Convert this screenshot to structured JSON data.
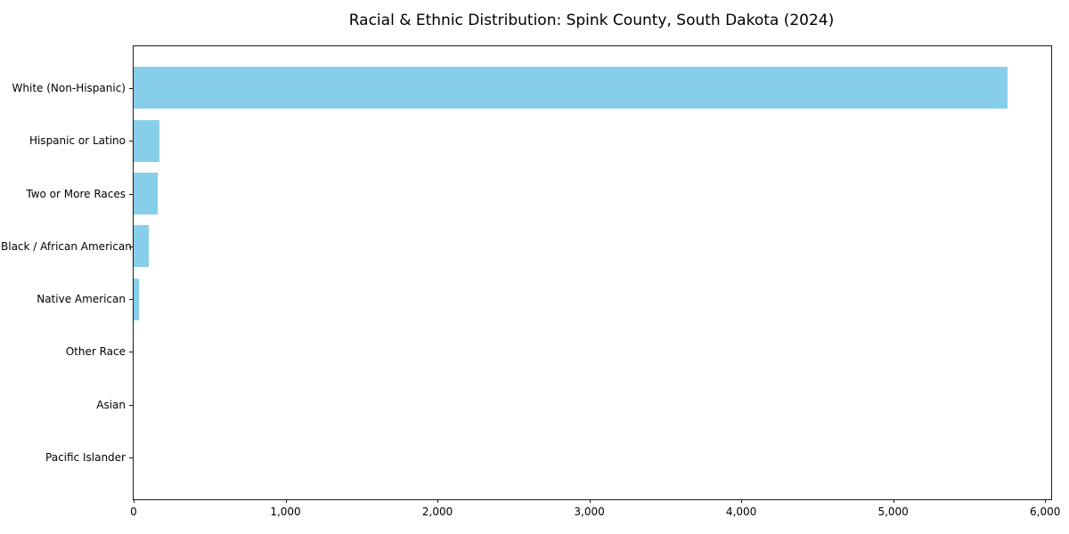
{
  "chart_data": {
    "type": "bar",
    "orientation": "horizontal",
    "title": "Racial & Ethnic Distribution: Spink County, South Dakota (2024)",
    "categories": [
      "White (Non-Hispanic)",
      "Hispanic or Latino",
      "Two or More Races",
      "Black / African American",
      "Native American",
      "Other Race",
      "Asian",
      "Pacific Islander"
    ],
    "values": [
      5750,
      170,
      160,
      98,
      33,
      0,
      0,
      0
    ],
    "bar_color": "#87CEEB",
    "spine_color": "#1a1a1a",
    "xlabel": "",
    "ylabel": "",
    "xlim": [
      0,
      6040
    ],
    "x_ticks": [
      0,
      1000,
      2000,
      3000,
      4000,
      5000,
      6000
    ],
    "x_tick_labels": [
      "0",
      "1,000",
      "2,000",
      "3,000",
      "4,000",
      "5,000",
      "6,000"
    ],
    "grid": false,
    "legend": null,
    "background": "#ffffff"
  }
}
